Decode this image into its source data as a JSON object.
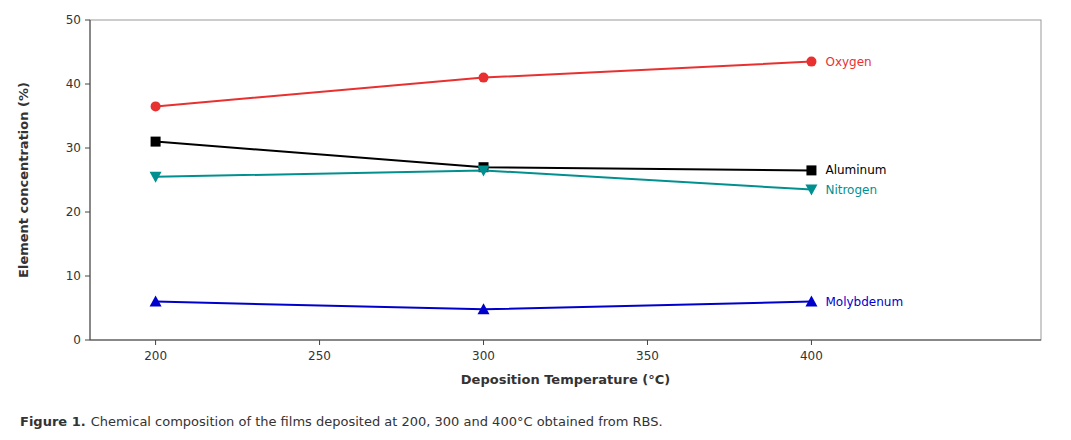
{
  "chart_data": {
    "type": "line",
    "xlabel": "Deposition Temperature (°C)",
    "ylabel": "Element concentration (%)",
    "annotations": [
      "Figure 1.",
      "Chemical composition of the films deposited at 200, 300 and 400°C obtained from RBS."
    ],
    "x": [
      200,
      300,
      400
    ],
    "series": [
      {
        "name": "Oxygen",
        "color": "#e83030",
        "marker": "circle",
        "values": [
          36.5,
          41.0,
          43.5
        ]
      },
      {
        "name": "Aluminum",
        "color": "#000000",
        "marker": "square",
        "values": [
          31.0,
          27.0,
          26.5
        ]
      },
      {
        "name": "Nitrogen",
        "color": "#009090",
        "marker": "triangle-down",
        "values": [
          25.5,
          26.5,
          23.5
        ]
      },
      {
        "name": "Molybdenum",
        "color": "#0000cc",
        "marker": "triangle-up",
        "values": [
          6.0,
          4.8,
          6.0
        ]
      }
    ],
    "xlim": [
      180,
      470
    ],
    "xticks": [
      200,
      250,
      300,
      350,
      400
    ],
    "ylim": [
      0,
      50
    ],
    "yticks": [
      0,
      10,
      20,
      30,
      40,
      50
    ],
    "grid": false
  }
}
